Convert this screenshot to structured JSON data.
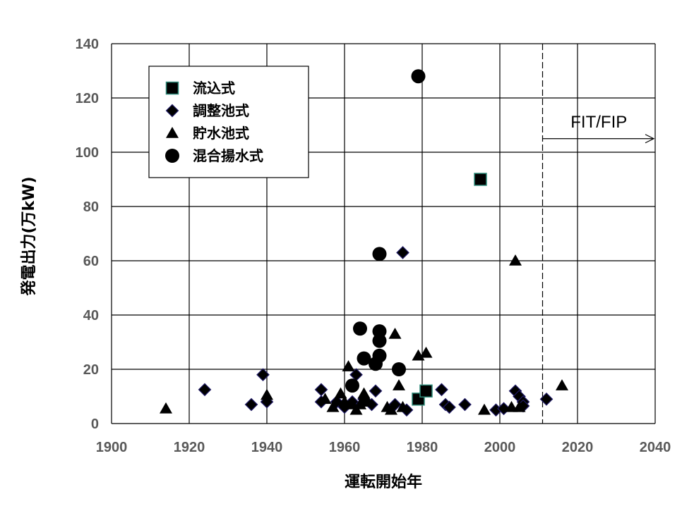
{
  "chart_data": {
    "type": "scatter",
    "xlabel": "運転開始年",
    "ylabel": "発電出力(万kW)",
    "xlim": [
      1900,
      2040
    ],
    "ylim": [
      0,
      140
    ],
    "x_ticks": [
      1900,
      1920,
      1940,
      1960,
      1980,
      2000,
      2020,
      2040
    ],
    "y_ticks": [
      0,
      20,
      40,
      60,
      80,
      100,
      120,
      140
    ],
    "grid": true,
    "legend_position": "top-left",
    "annotation": {
      "text": "FIT/FIP",
      "x_start": 2011,
      "x_end": 2040,
      "y": 105
    },
    "series": [
      {
        "name": "流込式",
        "marker": "square",
        "points": [
          [
            1995,
            90
          ],
          [
            1979,
            9
          ],
          [
            1981,
            12
          ]
        ]
      },
      {
        "name": "調整池式",
        "marker": "diamond",
        "points": [
          [
            1924,
            12.5
          ],
          [
            1936,
            7
          ],
          [
            1939,
            18
          ],
          [
            1940,
            8
          ],
          [
            1954,
            12.5
          ],
          [
            1954,
            8
          ],
          [
            1958,
            8
          ],
          [
            1960,
            6
          ],
          [
            1962,
            8
          ],
          [
            1963,
            18
          ],
          [
            1965,
            9
          ],
          [
            1967,
            7
          ],
          [
            1968,
            12
          ],
          [
            1973,
            7
          ],
          [
            1975,
            63
          ],
          [
            1976,
            5
          ],
          [
            1985,
            12.5
          ],
          [
            1986,
            7
          ],
          [
            1987,
            6
          ],
          [
            1991,
            7
          ],
          [
            1999,
            5
          ],
          [
            2001,
            5.5
          ],
          [
            2004,
            12
          ],
          [
            2005,
            10
          ],
          [
            2006,
            8
          ],
          [
            2006,
            6.5
          ],
          [
            2012,
            9
          ]
        ]
      },
      {
        "name": "貯水池式",
        "marker": "triangle",
        "points": [
          [
            1914,
            5.5
          ],
          [
            1940,
            10.5
          ],
          [
            1955,
            9
          ],
          [
            1957,
            6
          ],
          [
            1959,
            11
          ],
          [
            1960,
            8
          ],
          [
            1961,
            21
          ],
          [
            1962,
            7
          ],
          [
            1963,
            5
          ],
          [
            1964,
            7
          ],
          [
            1965,
            11
          ],
          [
            1966,
            8
          ],
          [
            1971,
            6
          ],
          [
            1972,
            5
          ],
          [
            1973,
            33
          ],
          [
            1974,
            14
          ],
          [
            1975,
            6
          ],
          [
            1979,
            25
          ],
          [
            1981,
            26
          ],
          [
            1996,
            5
          ],
          [
            2003,
            6
          ],
          [
            2004,
            60
          ],
          [
            2005,
            6
          ],
          [
            2016,
            14
          ]
        ]
      },
      {
        "name": "混合揚水式",
        "marker": "circle",
        "points": [
          [
            1979,
            128
          ],
          [
            1969,
            62.5
          ],
          [
            1964,
            35
          ],
          [
            1969,
            34
          ],
          [
            1969,
            30.5
          ],
          [
            1965,
            24
          ],
          [
            1969,
            25
          ],
          [
            1968,
            22
          ],
          [
            1974,
            20
          ],
          [
            1962,
            14
          ]
        ]
      }
    ]
  },
  "colors": {
    "marker_fill": "#000000",
    "diamond_edge": "#1f1a66",
    "square_edge": "#2e8b7a",
    "grid": "#000000",
    "tick_text": "#595959"
  }
}
